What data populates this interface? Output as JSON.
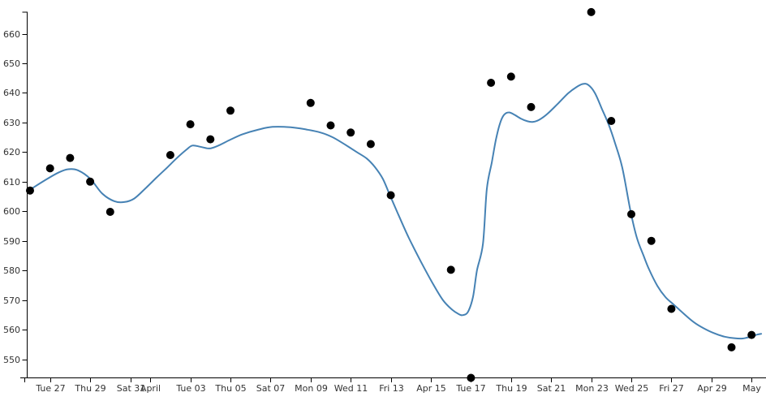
{
  "chart_data": {
    "type": "scatter",
    "title": "",
    "xlabel": "",
    "ylabel": "",
    "legend": "none",
    "grid": false,
    "colors": {
      "points": "#000000",
      "trend_line": "#4682b4",
      "axis": "#000000",
      "tick_text": "#333333"
    },
    "y_axis": {
      "ticks": [
        550,
        560,
        570,
        580,
        590,
        600,
        610,
        620,
        630,
        640,
        650,
        660
      ]
    },
    "x_axis": {
      "ticks": [
        {
          "label": "Tue 27",
          "day": 1
        },
        {
          "label": "Thu 29",
          "day": 3
        },
        {
          "label": "Sat 31",
          "day": 5
        },
        {
          "label": "April",
          "day": 6
        },
        {
          "label": "Tue 03",
          "day": 8
        },
        {
          "label": "Thu 05",
          "day": 10
        },
        {
          "label": "Sat 07",
          "day": 12
        },
        {
          "label": "Mon 09",
          "day": 14
        },
        {
          "label": "Wed 11",
          "day": 16
        },
        {
          "label": "Fri 13",
          "day": 18
        },
        {
          "label": "Apr 15",
          "day": 20
        },
        {
          "label": "Tue 17",
          "day": 22
        },
        {
          "label": "Thu 19",
          "day": 24
        },
        {
          "label": "Sat 21",
          "day": 26
        },
        {
          "label": "Mon 23",
          "day": 28
        },
        {
          "label": "Wed 25",
          "day": 30
        },
        {
          "label": "Fri 27",
          "day": 32
        },
        {
          "label": "Apr 29",
          "day": 34
        },
        {
          "label": "May",
          "day": 36
        }
      ]
    },
    "points": [
      {
        "date": "Mon Mar 26",
        "day": 0,
        "value": 607.0
      },
      {
        "date": "Tue Mar 27",
        "day": 1,
        "value": 614.5
      },
      {
        "date": "Wed Mar 28",
        "day": 2,
        "value": 618.0
      },
      {
        "date": "Thu Mar 29",
        "day": 3,
        "value": 610.0
      },
      {
        "date": "Fri Mar 30",
        "day": 4,
        "value": 599.8
      },
      {
        "date": "Mon Apr 02",
        "day": 7,
        "value": 619.0
      },
      {
        "date": "Tue Apr 03",
        "day": 8,
        "value": 629.4
      },
      {
        "date": "Wed Apr 04",
        "day": 9,
        "value": 624.3
      },
      {
        "date": "Thu Apr 05",
        "day": 10,
        "value": 634.0
      },
      {
        "date": "Mon Apr 09",
        "day": 14,
        "value": 636.6
      },
      {
        "date": "Tue Apr 10",
        "day": 15,
        "value": 629.0
      },
      {
        "date": "Wed Apr 11",
        "day": 16,
        "value": 626.6
      },
      {
        "date": "Thu Apr 12",
        "day": 17,
        "value": 622.7
      },
      {
        "date": "Fri Apr 13",
        "day": 18,
        "value": 605.4
      },
      {
        "date": "Mon Apr 16",
        "day": 21,
        "value": 580.2
      },
      {
        "date": "Tue Apr 17",
        "day": 22,
        "value": 543.7
      },
      {
        "date": "Wed Apr 18",
        "day": 23,
        "value": 643.4
      },
      {
        "date": "Thu Apr 19",
        "day": 24,
        "value": 645.5
      },
      {
        "date": "Fri Apr 20",
        "day": 25,
        "value": 635.2
      },
      {
        "date": "Mon Apr 23",
        "day": 28,
        "value": 667.3
      },
      {
        "date": "Tue Apr 24",
        "day": 29,
        "value": 630.5
      },
      {
        "date": "Wed Apr 25",
        "day": 30,
        "value": 599.0
      },
      {
        "date": "Thu Apr 26",
        "day": 31,
        "value": 590.0
      },
      {
        "date": "Fri Apr 27",
        "day": 32,
        "value": 567.0
      },
      {
        "date": "Mon Apr 30",
        "day": 35,
        "value": 554.0
      },
      {
        "date": "Tue May 01",
        "day": 36,
        "value": 558.2
      }
    ],
    "trend_line": [
      [
        0.0,
        607.3
      ],
      [
        0.75,
        610.5
      ],
      [
        1.4,
        613.0
      ],
      [
        1.9,
        614.2
      ],
      [
        2.4,
        613.8
      ],
      [
        3.0,
        611.0
      ],
      [
        3.6,
        606.0
      ],
      [
        4.2,
        603.4
      ],
      [
        4.7,
        603.1
      ],
      [
        5.2,
        604.3
      ],
      [
        5.8,
        608.0
      ],
      [
        6.3,
        611.3
      ],
      [
        6.8,
        614.5
      ],
      [
        7.3,
        617.8
      ],
      [
        7.8,
        620.8
      ],
      [
        8.1,
        622.2
      ],
      [
        8.5,
        621.8
      ],
      [
        8.95,
        621.2
      ],
      [
        9.4,
        622.2
      ],
      [
        10.0,
        624.2
      ],
      [
        10.6,
        626.0
      ],
      [
        11.4,
        627.6
      ],
      [
        12.1,
        628.5
      ],
      [
        13.0,
        628.4
      ],
      [
        13.8,
        627.6
      ],
      [
        14.5,
        626.6
      ],
      [
        15.1,
        625.0
      ],
      [
        15.7,
        622.6
      ],
      [
        16.3,
        620.0
      ],
      [
        16.8,
        617.8
      ],
      [
        17.2,
        615.0
      ],
      [
        17.6,
        611.0
      ],
      [
        17.95,
        605.5
      ],
      [
        18.4,
        598.5
      ],
      [
        18.9,
        591.0
      ],
      [
        19.5,
        583.0
      ],
      [
        20.1,
        575.5
      ],
      [
        20.6,
        570.0
      ],
      [
        21.05,
        566.8
      ],
      [
        21.4,
        565.2
      ],
      [
        21.6,
        564.9
      ],
      [
        21.85,
        566.0
      ],
      [
        22.1,
        571.0
      ],
      [
        22.3,
        580.0
      ],
      [
        22.6,
        589.0
      ],
      [
        22.79,
        607.4
      ],
      [
        23.04,
        616.5
      ],
      [
        23.24,
        624.0
      ],
      [
        23.44,
        629.5
      ],
      [
        23.64,
        632.5
      ],
      [
        23.89,
        633.4
      ],
      [
        24.17,
        632.6
      ],
      [
        24.49,
        631.3
      ],
      [
        24.82,
        630.4
      ],
      [
        25.1,
        630.2
      ],
      [
        25.43,
        631.0
      ],
      [
        25.83,
        633.0
      ],
      [
        26.36,
        636.5
      ],
      [
        26.84,
        639.8
      ],
      [
        27.25,
        641.9
      ],
      [
        27.57,
        643.0
      ],
      [
        27.85,
        642.7
      ],
      [
        28.18,
        640.0
      ],
      [
        28.54,
        634.5
      ],
      [
        28.87,
        629.3
      ],
      [
        29.19,
        623.0
      ],
      [
        29.55,
        614.7
      ],
      [
        29.96,
        600.1
      ],
      [
        30.28,
        591.0
      ],
      [
        30.61,
        585.0
      ],
      [
        30.89,
        580.3
      ],
      [
        31.3,
        574.8
      ],
      [
        31.7,
        571.0
      ],
      [
        32.11,
        568.5
      ],
      [
        32.63,
        565.3
      ],
      [
        33.12,
        562.5
      ],
      [
        33.6,
        560.5
      ],
      [
        34.13,
        558.8
      ],
      [
        34.66,
        557.6
      ],
      [
        35.14,
        557.1
      ],
      [
        35.55,
        557.0
      ],
      [
        35.95,
        557.6
      ],
      [
        36.28,
        558.3
      ],
      [
        36.48,
        558.6
      ]
    ]
  }
}
